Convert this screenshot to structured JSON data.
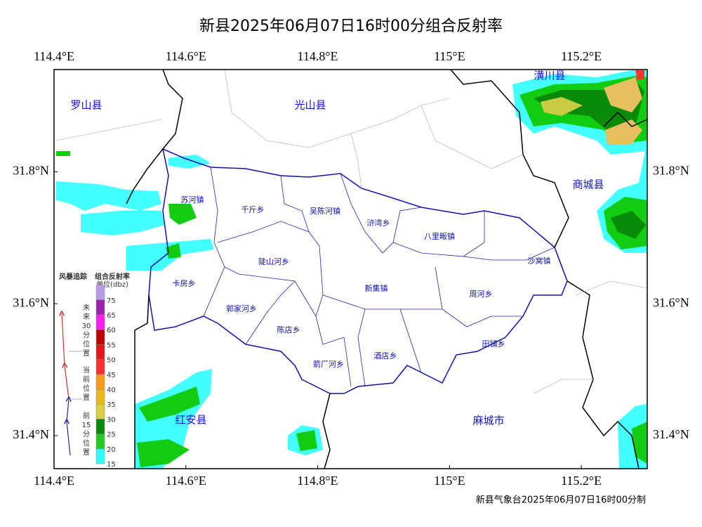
{
  "header": {
    "title": "新县2025年06月07日16时00分组合反射率"
  },
  "map": {
    "lon_range": [
      114.4,
      115.3
    ],
    "lat_range": [
      31.35,
      31.955
    ]
  },
  "lon_ticks": [
    {
      "value": 114.4,
      "label": "114.4°E"
    },
    {
      "value": 114.6,
      "label": "114.6°E"
    },
    {
      "value": 114.8,
      "label": "114.8°E"
    },
    {
      "value": 115,
      "label": "115°E"
    },
    {
      "value": 115.2,
      "label": "115.2°E"
    }
  ],
  "lat_ticks": [
    {
      "value": 31.8,
      "label": "31.8°N"
    },
    {
      "value": 31.6,
      "label": "31.6°N"
    },
    {
      "value": 31.4,
      "label": "31.4°N"
    }
  ],
  "places": {
    "counties": [
      "罗山县",
      "光山县",
      "潢川县",
      "商城县",
      "红安县",
      "麻城市"
    ],
    "towns": [
      "苏河镇",
      "千斤乡",
      "吴陈河镇",
      "浒湾乡",
      "八里畈镇",
      "陡山河乡",
      "沙窝镇",
      "卡房乡",
      "新集镇",
      "周河乡",
      "郭家河乡",
      "陈店乡",
      "田铺乡",
      "酒店乡",
      "箭厂河乡"
    ]
  },
  "storm_track": {
    "title": "风暴追踪",
    "future": "未来30分位置",
    "current": "当前位置",
    "past": "前15分位置"
  },
  "legend": {
    "title": "组合反射率",
    "unit": "单位(dbz)",
    "labels": [
      15,
      20,
      25,
      30,
      35,
      40,
      45,
      50,
      55,
      60,
      65,
      75
    ],
    "colors": [
      "#33ffff",
      "#22cc22",
      "#0a8a0a",
      "#d8d040",
      "#e8b820",
      "#ff9a20",
      "#ff3030",
      "#e01818",
      "#c00000",
      "#ff20f0",
      "#a020b0",
      "#b89ae8"
    ]
  },
  "footer": "新县气象台2025年06月07日16时00分制"
}
